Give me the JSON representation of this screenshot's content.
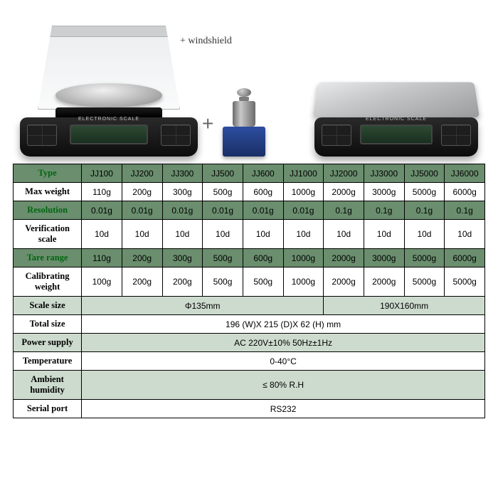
{
  "images": {
    "windshield_label": "+  windshield"
  },
  "table": {
    "colors": {
      "header_green": "#6a8e6e",
      "light_green": "#cddbce",
      "white": "#ffffff",
      "border": "#000000"
    },
    "label_fontsize": 12.5,
    "cell_fontsize": 12,
    "models": [
      "JJ100",
      "JJ200",
      "JJ300",
      "JJ500",
      "JJ600",
      "JJ1000",
      "JJ2000",
      "JJ3000",
      "JJ5000",
      "JJ6000"
    ],
    "rows": {
      "type": "Type",
      "max_weight": {
        "label": "Max weight",
        "values": [
          "110g",
          "200g",
          "300g",
          "500g",
          "600g",
          "1000g",
          "2000g",
          "3000g",
          "5000g",
          "6000g"
        ]
      },
      "resolution": {
        "label": "Resolution",
        "values": [
          "0.01g",
          "0.01g",
          "0.01g",
          "0.01g",
          "0.01g",
          "0.01g",
          "0.1g",
          "0.1g",
          "0.1g",
          "0.1g"
        ]
      },
      "verification": {
        "label": "Verification scale",
        "values": [
          "10d",
          "10d",
          "10d",
          "10d",
          "10d",
          "10d",
          "10d",
          "10d",
          "10d",
          "10d"
        ]
      },
      "tare": {
        "label": "Tare range",
        "values": [
          "110g",
          "200g",
          "300g",
          "500g",
          "600g",
          "1000g",
          "2000g",
          "3000g",
          "5000g",
          "6000g"
        ]
      },
      "calibrating": {
        "label": "Calibrating weight",
        "values": [
          "100g",
          "200g",
          "200g",
          "500g",
          "500g",
          "1000g",
          "2000g",
          "2000g",
          "5000g",
          "5000g"
        ]
      },
      "scale_size": {
        "label": "Scale size",
        "left": "Φ135mm",
        "right": "190X160mm"
      },
      "total_size": {
        "label": "Total size",
        "value": "196 (W)X 215 (D)X 62 (H) mm"
      },
      "power": {
        "label": "Power supply",
        "value": "AC 220V±10% 50Hz±1Hz"
      },
      "temperature": {
        "label": "Temperature",
        "value": "0-40°C"
      },
      "humidity": {
        "label": "Ambient humidity",
        "value": "≤ 80% R.H"
      },
      "serial": {
        "label": "Serial port",
        "value": "RS232"
      }
    }
  }
}
